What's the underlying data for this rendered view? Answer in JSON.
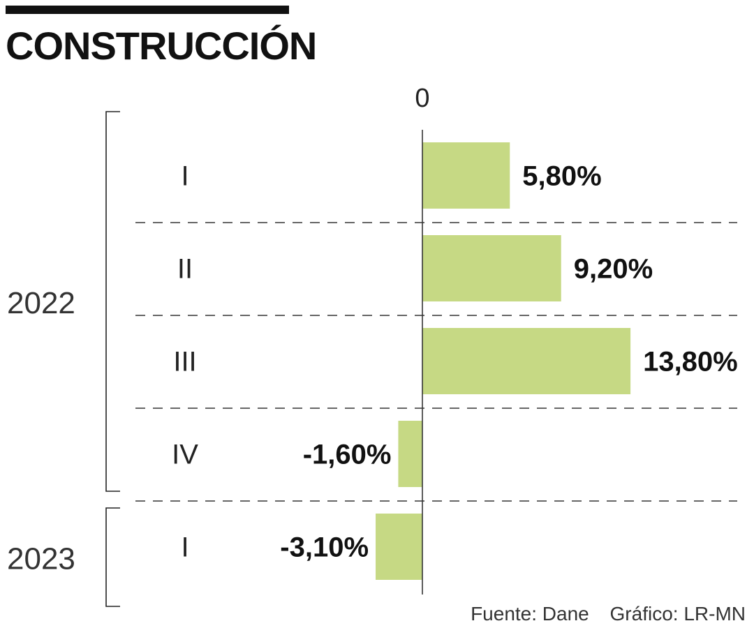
{
  "title": "CONSTRUCCIÓN",
  "source": "Fuente: Dane",
  "credit": "Gráfico: LR-MN",
  "colors": {
    "bar": "#c6d984",
    "text": "#111111",
    "gridline": "#333333"
  },
  "chart_data": {
    "type": "bar",
    "orientation": "horizontal",
    "categories": [
      "I",
      "II",
      "III",
      "IV",
      "I"
    ],
    "groups": [
      {
        "label": "2022",
        "categories": [
          "I",
          "II",
          "III",
          "IV"
        ]
      },
      {
        "label": "2023",
        "categories": [
          "I"
        ]
      }
    ],
    "values": [
      5.8,
      9.2,
      13.8,
      -1.6,
      -3.1
    ],
    "value_labels": [
      "5,80%",
      "9,20%",
      "13,80%",
      "-1,60%",
      "-3,10%"
    ],
    "zero_label": "0",
    "xlim": [
      -3.1,
      13.8
    ],
    "grid": "dashed separators between categories",
    "legend": "none"
  }
}
